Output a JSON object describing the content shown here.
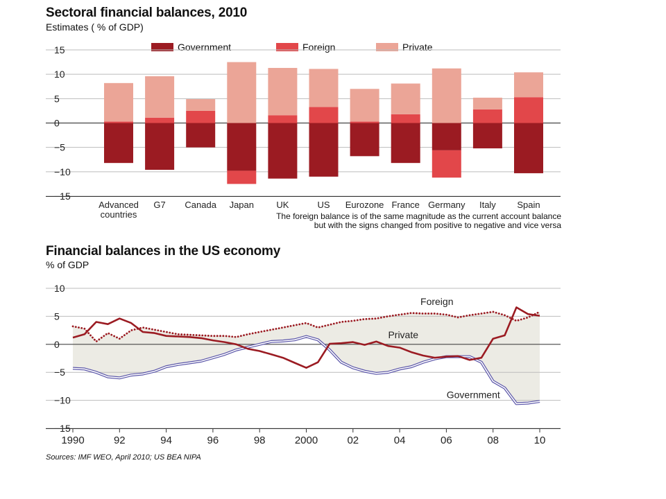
{
  "top": {
    "title": "Sectoral financial balances, 2010",
    "subtitle": "Estimates ( % of GDP)",
    "note_line1": "The foreign balance is of the same magnitude as the current account balance",
    "note_line2": "but with the signs changed from positive to negative and vice versa"
  },
  "bottom": {
    "title": "Financial balances in the US economy",
    "subtitle": "% of GDP",
    "source": "Sources: IMF WEO, April 2010; US BEA NIPA"
  },
  "colors": {
    "government": "#9b1b22",
    "foreign": "#e2474a",
    "private": "#eba597",
    "shade": "#ecebe4",
    "gov_line": "#5a55a8"
  },
  "chart_data": [
    {
      "type": "bar",
      "stacked": "diverging",
      "title": "Sectoral financial balances, 2010",
      "subtitle": "Estimates ( % of GDP)",
      "ylim": [
        -15,
        15
      ],
      "yticks": [
        15,
        10,
        5,
        0,
        -5,
        -10,
        -15
      ],
      "legend_position": "top",
      "categories": [
        "Advanced countries",
        "G7",
        "Canada",
        "Japan",
        "UK",
        "US",
        "Eurozone",
        "France",
        "Germany",
        "Italy",
        "Spain"
      ],
      "category_labels": [
        [
          "Advanced",
          "countries"
        ],
        [
          "G7"
        ],
        [
          "Canada"
        ],
        [
          "Japan"
        ],
        [
          "UK"
        ],
        [
          "US"
        ],
        [
          "Eurozone"
        ],
        [
          "France"
        ],
        [
          "Germany"
        ],
        [
          "Italy"
        ],
        [
          "Spain"
        ]
      ],
      "series": [
        {
          "name": "Government",
          "values": [
            -8.2,
            -9.6,
            -5.0,
            -9.8,
            -11.4,
            -11.0,
            -6.8,
            -8.2,
            -5.6,
            -5.2,
            -10.3
          ]
        },
        {
          "name": "Foreign",
          "values": [
            0.3,
            1.1,
            2.5,
            -2.7,
            1.6,
            3.3,
            0.3,
            1.8,
            -5.6,
            2.8,
            5.3
          ]
        },
        {
          "name": "Private",
          "values": [
            7.9,
            8.5,
            2.4,
            12.5,
            9.7,
            7.8,
            6.7,
            6.3,
            11.2,
            2.4,
            5.1
          ]
        }
      ]
    },
    {
      "type": "line",
      "title": "Financial balances in the US economy",
      "ylabel": "% of GDP",
      "xlim": [
        1990,
        2010
      ],
      "xticks": [
        "1990",
        "92",
        "94",
        "96",
        "98",
        "2000",
        "02",
        "04",
        "06",
        "08",
        "10"
      ],
      "ylim": [
        -15,
        10
      ],
      "yticks": [
        10,
        5,
        0,
        -5,
        -10,
        -15
      ],
      "series": [
        {
          "name": "Foreign",
          "style": "dotted",
          "x": [
            1990,
            1990.5,
            1991,
            1991.5,
            1992,
            1992.5,
            1993,
            1993.5,
            1994,
            1994.5,
            1995,
            1995.5,
            1996,
            1996.5,
            1997,
            1997.5,
            1998,
            1998.5,
            1999,
            1999.5,
            2000,
            2000.5,
            2001,
            2001.5,
            2002,
            2002.5,
            2003,
            2003.5,
            2004,
            2004.5,
            2005,
            2005.5,
            2006,
            2006.5,
            2007,
            2007.5,
            2008,
            2008.5,
            2009,
            2009.5,
            2010
          ],
          "y": [
            3.2,
            2.8,
            0.5,
            2.0,
            1.0,
            2.5,
            3.0,
            2.6,
            2.2,
            1.8,
            1.7,
            1.6,
            1.5,
            1.5,
            1.3,
            1.8,
            2.2,
            2.6,
            3.0,
            3.4,
            3.8,
            3.0,
            3.5,
            4.0,
            4.2,
            4.5,
            4.6,
            5.0,
            5.3,
            5.6,
            5.5,
            5.5,
            5.3,
            4.8,
            5.2,
            5.5,
            5.8,
            5.2,
            4.2,
            4.8,
            5.8
          ]
        },
        {
          "name": "Private",
          "style": "solid",
          "x": [
            1990,
            1990.5,
            1991,
            1991.5,
            1992,
            1992.5,
            1993,
            1993.5,
            1994,
            1994.5,
            1995,
            1995.5,
            1996,
            1996.5,
            1997,
            1997.5,
            1998,
            1998.5,
            1999,
            1999.5,
            2000,
            2000.5,
            2001,
            2001.5,
            2002,
            2002.5,
            2003,
            2003.5,
            2004,
            2004.5,
            2005,
            2005.5,
            2006,
            2006.5,
            2007,
            2007.5,
            2008,
            2008.5,
            2009,
            2009.5,
            2010
          ],
          "y": [
            1.2,
            1.8,
            4.0,
            3.6,
            4.6,
            3.8,
            2.2,
            2.0,
            1.5,
            1.4,
            1.3,
            1.1,
            0.7,
            0.4,
            0.0,
            -0.8,
            -1.2,
            -1.8,
            -2.4,
            -3.3,
            -4.2,
            -3.2,
            0.1,
            0.2,
            0.4,
            -0.1,
            0.5,
            -0.3,
            -0.6,
            -1.4,
            -2.0,
            -2.4,
            -2.2,
            -2.1,
            -2.8,
            -2.4,
            1.0,
            1.6,
            6.6,
            5.4,
            5.1
          ]
        },
        {
          "name": "Government",
          "style": "double",
          "x": [
            1990,
            1990.5,
            1991,
            1991.5,
            1992,
            1992.5,
            1993,
            1993.5,
            1994,
            1994.5,
            1995,
            1995.5,
            1996,
            1996.5,
            1997,
            1997.5,
            1998,
            1998.5,
            1999,
            1999.5,
            2000,
            2000.5,
            2001,
            2001.5,
            2002,
            2002.5,
            2003,
            2003.5,
            2004,
            2004.5,
            2005,
            2005.5,
            2006,
            2006.5,
            2007,
            2007.5,
            2008,
            2008.5,
            2009,
            2009.5,
            2010
          ],
          "y": [
            -4.3,
            -4.4,
            -5.0,
            -5.8,
            -6.0,
            -5.5,
            -5.3,
            -4.8,
            -4.0,
            -3.6,
            -3.3,
            -3.0,
            -2.4,
            -1.8,
            -1.0,
            -0.5,
            0.0,
            0.5,
            0.6,
            0.8,
            1.4,
            0.8,
            -1.0,
            -3.2,
            -4.2,
            -4.8,
            -5.2,
            -5.0,
            -4.4,
            -4.0,
            -3.2,
            -2.6,
            -2.2,
            -2.2,
            -2.2,
            -3.2,
            -6.6,
            -7.8,
            -10.6,
            -10.5,
            -10.2
          ]
        }
      ],
      "annotations": [
        "Foreign",
        "Private",
        "Government"
      ]
    }
  ]
}
